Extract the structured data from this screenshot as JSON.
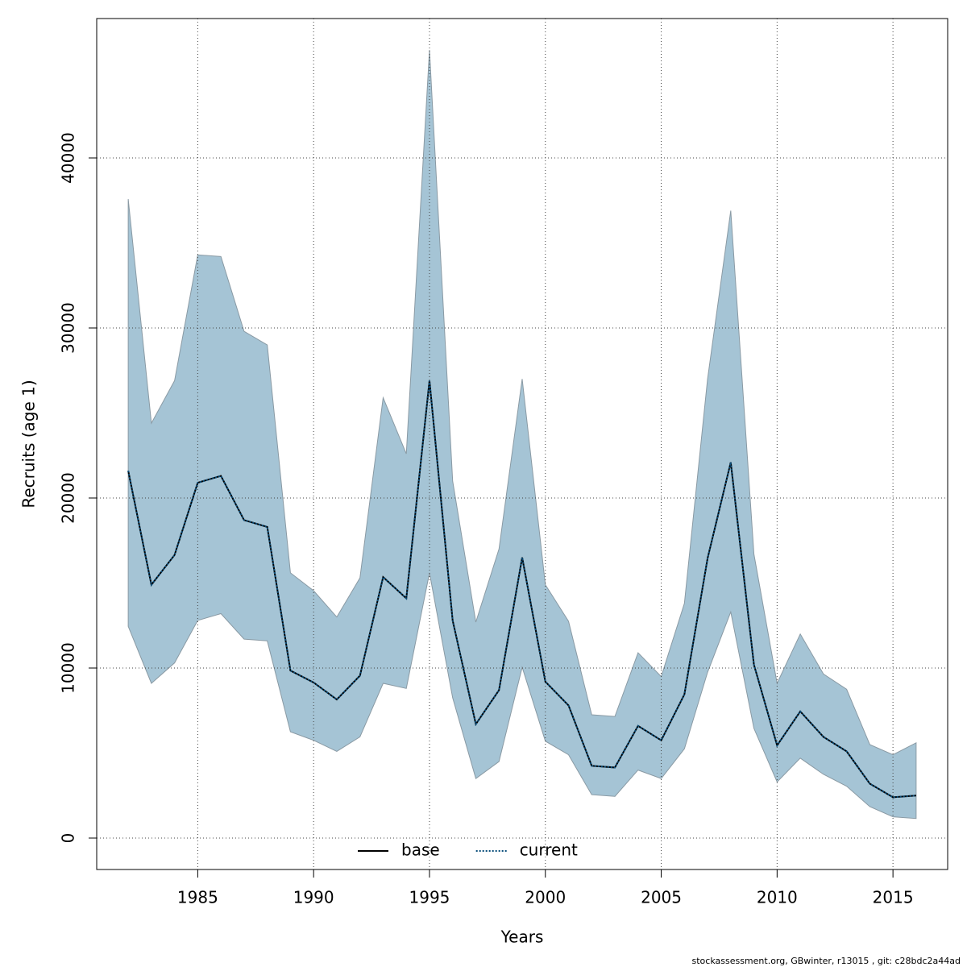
{
  "chart_data": {
    "type": "line",
    "xlabel": "Years",
    "ylabel": "Recruits (age 1)",
    "footer": "stockassessment.org, GBwinter, r13015 , git: c28bdc2a44ad",
    "x": [
      1982,
      1983,
      1984,
      1985,
      1986,
      1987,
      1988,
      1989,
      1990,
      1991,
      1992,
      1993,
      1994,
      1995,
      1996,
      1997,
      1998,
      1999,
      2000,
      2001,
      2002,
      2003,
      2004,
      2005,
      2006,
      2007,
      2008,
      2009,
      2010,
      2011,
      2012,
      2013,
      2014,
      2015,
      2016
    ],
    "band": {
      "color": "#a5c4d5",
      "upper": [
        37580,
        24400,
        26900,
        34300,
        34200,
        29800,
        29000,
        15600,
        14550,
        13000,
        15300,
        25900,
        22600,
        46350,
        21000,
        12700,
        17000,
        27000,
        14900,
        12750,
        7250,
        7150,
        10900,
        9500,
        13800,
        27000,
        36900,
        16700,
        9100,
        12000,
        9650,
        8750,
        5500,
        4900,
        5600
      ],
      "lower": [
        12450,
        9100,
        10300,
        12800,
        13200,
        11700,
        11600,
        6250,
        5750,
        5100,
        5950,
        9100,
        8800,
        15600,
        8250,
        3500,
        4500,
        10050,
        5700,
        4900,
        2550,
        2450,
        4000,
        3500,
        5250,
        9750,
        13300,
        6450,
        3300,
        4700,
        3750,
        3050,
        1850,
        1250,
        1150
      ]
    },
    "series": [
      {
        "name": "base",
        "color": "#000000",
        "values": [
          21600,
          14900,
          16650,
          20900,
          21300,
          18700,
          18300,
          9850,
          9150,
          8150,
          9550,
          15350,
          14100,
          26900,
          12800,
          6700,
          8700,
          16500,
          9200,
          7800,
          4250,
          4150,
          6600,
          5750,
          8450,
          16450,
          22100,
          10200,
          5450,
          7450,
          5950,
          5100,
          3200,
          2400,
          2500
        ]
      },
      {
        "name": "current",
        "color": "#0b4f7c",
        "dashed": true,
        "values": [
          21600,
          14900,
          16650,
          20900,
          21300,
          18700,
          18300,
          9850,
          9150,
          8150,
          9550,
          15350,
          14100,
          26900,
          12800,
          6700,
          8700,
          16500,
          9200,
          7800,
          4250,
          4150,
          6600,
          5750,
          8450,
          16450,
          22100,
          10200,
          5450,
          7450,
          5950,
          5100,
          3200,
          2400,
          2500
        ]
      }
    ],
    "xlim": [
      1980.64,
      2017.36
    ],
    "ylim": [
      -1848,
      48199
    ],
    "xticks": [
      1985,
      1990,
      1995,
      2000,
      2005,
      2010,
      2015
    ],
    "yticks": [
      0,
      10000,
      20000,
      30000,
      40000
    ],
    "grid": true,
    "legend": "bottom"
  }
}
